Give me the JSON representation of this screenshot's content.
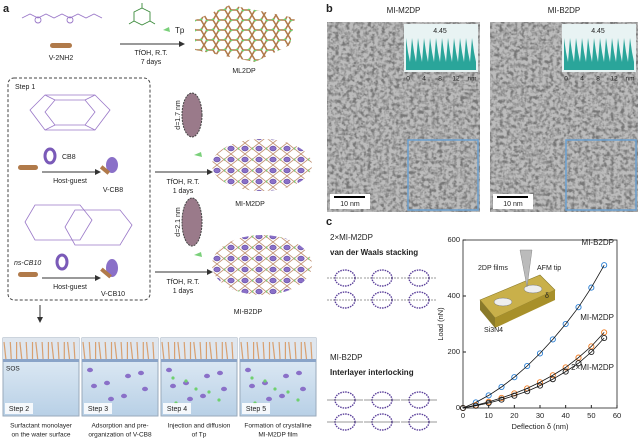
{
  "panel_a": {
    "label": "a",
    "v2nh2": "V-2NH2",
    "tp": "Tp",
    "cond_top": [
      "TfOH, R.T.",
      "7 days"
    ],
    "ml2dp": "ML2DP",
    "step1": "Step 1",
    "cb8": "CB8",
    "host_guest_1": "Host-guest",
    "v_cb8": "V-CB8",
    "cond_mid": [
      "TfOH, R.T.",
      "1 days"
    ],
    "d_m": "d=1.7 nm",
    "mi_m2dp": "MI-M2DP",
    "ns_cb10": "ns-CB10",
    "host_guest_2": "Host-guest",
    "v_cb10": "V-CB10",
    "cond_low": [
      "TfOH, R.T.",
      "1 days"
    ],
    "d_b": "d=2.1 nm",
    "mi_b2dp": "MI-B2DP",
    "sos": "SOS",
    "steps": [
      {
        "label": "Step 2",
        "caption": [
          "Surfactant monolayer",
          "on the water surface"
        ]
      },
      {
        "label": "Step 3",
        "caption": [
          "Adsorption and pre-",
          "organization of V-CB8"
        ]
      },
      {
        "label": "Step 4",
        "caption": [
          "Injection and diffusion",
          "of Tp"
        ]
      },
      {
        "label": "Step 5",
        "caption": [
          "Formation of crystalline",
          "MI-M2DP film"
        ]
      }
    ]
  },
  "panel_b": {
    "label": "b",
    "images": [
      {
        "title": "MI-M2DP",
        "scale_bar": "10 nm",
        "peak": "4.45",
        "ticks": [
          "0",
          "4",
          "8",
          "12",
          "nm"
        ]
      },
      {
        "title": "MI-B2DP",
        "scale_bar": "10 nm",
        "peak": "4.45",
        "ticks": [
          "0",
          "4",
          "8",
          "12",
          "nm"
        ]
      }
    ]
  },
  "panel_c": {
    "label": "c",
    "stack_title": "2×MI-M2DP",
    "stack_subtitle": "van der Waals stacking",
    "interlock_title": "MI-B2DP",
    "interlock_subtitle": "Interlayer interlocking",
    "inset": {
      "films": "2DP films",
      "tip": "AFM tip",
      "substrate": "Si3N4",
      "delta": "δ"
    }
  },
  "chart_data": {
    "type": "line",
    "x_label": "Deflection δ (nm)",
    "y_label": "Load (nN)",
    "x": [
      0,
      5,
      10,
      15,
      20,
      25,
      30,
      35,
      40,
      45,
      50,
      55
    ],
    "series": [
      {
        "name": "MI-B2DP",
        "color": "#2a7fd4",
        "values": [
          0,
          20,
          45,
          75,
          110,
          150,
          195,
          245,
          300,
          360,
          430,
          510
        ]
      },
      {
        "name": "MI-M2DP",
        "color": "#f07a20",
        "values": [
          0,
          10,
          22,
          36,
          52,
          70,
          92,
          117,
          145,
          180,
          220,
          270
        ]
      },
      {
        "name": "2×MI-M2DP",
        "color": "#222222",
        "values": [
          0,
          8,
          18,
          30,
          44,
          60,
          80,
          103,
          130,
          160,
          200,
          250
        ]
      }
    ],
    "xlim": [
      0,
      60
    ],
    "ylim": [
      0,
      600
    ],
    "xticks": [
      0,
      10,
      20,
      30,
      40,
      50,
      60
    ],
    "yticks": [
      0,
      200,
      400,
      600
    ]
  }
}
